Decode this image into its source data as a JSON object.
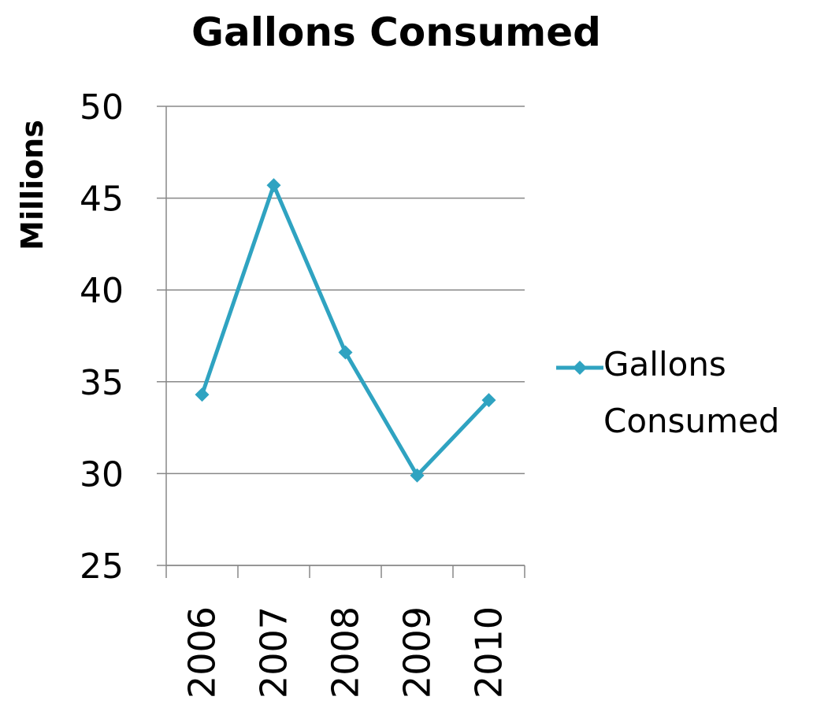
{
  "chart_data": {
    "type": "line",
    "title": "Gallons Consumed",
    "y_label": "Millions",
    "categories": [
      "2006",
      "2007",
      "2008",
      "2009",
      "2010"
    ],
    "series": [
      {
        "name": "Gallons Consumed",
        "color": "#2fa3c1",
        "values": [
          34.3,
          45.7,
          36.6,
          29.9,
          34.0
        ]
      }
    ],
    "ylim": [
      25,
      50
    ],
    "yticks": [
      25,
      30,
      35,
      40,
      45,
      50
    ],
    "grid": true,
    "legend": "right"
  }
}
